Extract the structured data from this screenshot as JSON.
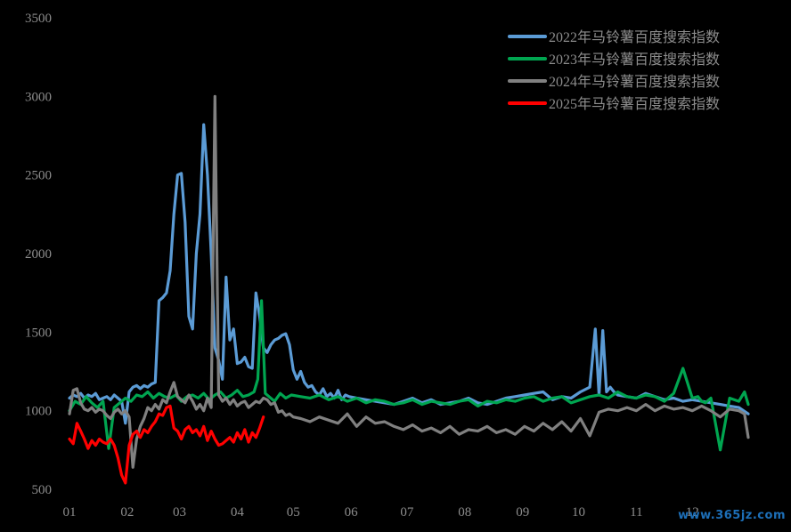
{
  "watermark": "www.365jz.com",
  "chart_data": {
    "type": "line",
    "title": "",
    "xlabel": "",
    "ylabel": "",
    "ylim": [
      500,
      3500
    ],
    "yticks": [
      500,
      1000,
      1500,
      2000,
      2500,
      3000,
      3500
    ],
    "x_unit": "day-of-year",
    "xlim": [
      1,
      365
    ],
    "xticks": [
      {
        "label": "01",
        "day": 1
      },
      {
        "label": "02",
        "day": 32
      },
      {
        "label": "03",
        "day": 60
      },
      {
        "label": "04",
        "day": 91
      },
      {
        "label": "05",
        "day": 121
      },
      {
        "label": "06",
        "day": 152
      },
      {
        "label": "07",
        "day": 182
      },
      {
        "label": "08",
        "day": 213
      },
      {
        "label": "09",
        "day": 244
      },
      {
        "label": "10",
        "day": 274
      },
      {
        "label": "11",
        "day": 305
      },
      {
        "label": "12",
        "day": 335
      }
    ],
    "grid": false,
    "legend_position": "top-right",
    "series": [
      {
        "name": "2022年马铃薯百度搜索指数",
        "color": "#5b9bd5",
        "x": [
          1,
          3,
          5,
          7,
          9,
          11,
          13,
          15,
          17,
          19,
          21,
          23,
          25,
          27,
          29,
          31,
          33,
          35,
          37,
          39,
          41,
          43,
          45,
          47,
          49,
          51,
          53,
          55,
          57,
          59,
          61,
          63,
          65,
          67,
          69,
          71,
          73,
          75,
          77,
          79,
          81,
          83,
          85,
          87,
          89,
          91,
          93,
          95,
          97,
          99,
          101,
          103,
          105,
          107,
          109,
          111,
          113,
          115,
          117,
          119,
          121,
          123,
          125,
          127,
          129,
          131,
          133,
          135,
          137,
          139,
          141,
          143,
          145,
          147,
          149,
          151,
          155,
          160,
          165,
          170,
          175,
          180,
          185,
          190,
          195,
          200,
          205,
          210,
          215,
          220,
          225,
          230,
          235,
          240,
          245,
          250,
          255,
          260,
          265,
          270,
          275,
          280,
          283,
          285,
          287,
          289,
          291,
          293,
          295,
          300,
          305,
          310,
          315,
          320,
          325,
          330,
          335,
          340,
          345,
          350,
          355,
          360,
          365
        ],
        "y": [
          1080,
          1100,
          1090,
          1110,
          1080,
          1100,
          1090,
          1110,
          1070,
          1080,
          1090,
          1070,
          1100,
          1080,
          1060,
          920,
          1120,
          1150,
          1160,
          1140,
          1160,
          1150,
          1170,
          1180,
          1700,
          1720,
          1750,
          1890,
          2250,
          2500,
          2510,
          2200,
          1600,
          1520,
          2000,
          2250,
          2820,
          2500,
          2000,
          1400,
          1320,
          1200,
          1850,
          1450,
          1520,
          1300,
          1310,
          1340,
          1280,
          1270,
          1750,
          1600,
          1400,
          1370,
          1420,
          1450,
          1460,
          1480,
          1490,
          1420,
          1260,
          1200,
          1250,
          1180,
          1150,
          1160,
          1120,
          1100,
          1140,
          1090,
          1110,
          1080,
          1130,
          1070,
          1100,
          1090,
          1080,
          1070,
          1060,
          1050,
          1040,
          1060,
          1080,
          1050,
          1070,
          1040,
          1050,
          1060,
          1080,
          1050,
          1040,
          1060,
          1080,
          1090,
          1100,
          1110,
          1120,
          1070,
          1090,
          1080,
          1120,
          1150,
          1520,
          1100,
          1510,
          1120,
          1150,
          1120,
          1100,
          1090,
          1080,
          1110,
          1090,
          1070,
          1080,
          1060,
          1070,
          1060,
          1050,
          1040,
          1030,
          1020,
          980
        ]
      },
      {
        "name": "2023年马铃薯百度搜索指数",
        "color": "#00a550",
        "x": [
          1,
          4,
          7,
          10,
          13,
          16,
          19,
          22,
          25,
          28,
          31,
          34,
          37,
          40,
          43,
          46,
          49,
          52,
          55,
          58,
          61,
          64,
          67,
          70,
          73,
          76,
          79,
          82,
          85,
          88,
          91,
          94,
          97,
          100,
          102,
          104,
          106,
          108,
          111,
          114,
          117,
          120,
          125,
          130,
          135,
          140,
          145,
          150,
          155,
          160,
          165,
          170,
          175,
          180,
          185,
          190,
          195,
          200,
          205,
          210,
          215,
          220,
          225,
          230,
          235,
          240,
          245,
          250,
          255,
          260,
          265,
          270,
          275,
          280,
          285,
          290,
          295,
          300,
          305,
          310,
          315,
          320,
          325,
          330,
          335,
          338,
          340,
          342,
          345,
          350,
          355,
          360,
          363,
          365
        ],
        "y": [
          1000,
          1060,
          1040,
          1090,
          1050,
          1020,
          1060,
          760,
          1020,
          1050,
          1080,
          1060,
          1100,
          1090,
          1120,
          1080,
          1110,
          1090,
          1080,
          1100,
          1060,
          1090,
          1100,
          1080,
          1110,
          1070,
          1100,
          1120,
          1080,
          1100,
          1130,
          1090,
          1100,
          1120,
          1200,
          1700,
          1110,
          1090,
          1060,
          1110,
          1080,
          1100,
          1090,
          1080,
          1100,
          1070,
          1090,
          1060,
          1080,
          1050,
          1070,
          1060,
          1040,
          1050,
          1070,
          1040,
          1060,
          1050,
          1040,
          1060,
          1070,
          1030,
          1060,
          1050,
          1070,
          1060,
          1080,
          1090,
          1060,
          1080,
          1090,
          1050,
          1070,
          1090,
          1100,
          1080,
          1120,
          1090,
          1080,
          1100,
          1090,
          1060,
          1110,
          1270,
          1080,
          1090,
          1060,
          1050,
          1080,
          750,
          1080,
          1060,
          1120,
          1040
        ]
      },
      {
        "name": "2024年马铃薯百度搜索指数",
        "color": "#808080",
        "x": [
          1,
          3,
          5,
          7,
          9,
          11,
          13,
          15,
          17,
          19,
          21,
          23,
          25,
          27,
          29,
          31,
          33,
          35,
          37,
          39,
          41,
          43,
          45,
          47,
          49,
          51,
          53,
          55,
          57,
          59,
          61,
          63,
          65,
          67,
          69,
          71,
          73,
          75,
          77,
          79,
          81,
          83,
          85,
          87,
          89,
          91,
          93,
          95,
          97,
          99,
          101,
          103,
          105,
          107,
          109,
          111,
          113,
          115,
          117,
          119,
          121,
          125,
          130,
          135,
          140,
          145,
          150,
          155,
          160,
          165,
          170,
          175,
          180,
          185,
          190,
          195,
          200,
          205,
          210,
          215,
          220,
          225,
          230,
          235,
          240,
          245,
          250,
          255,
          260,
          265,
          270,
          275,
          280,
          285,
          290,
          295,
          300,
          305,
          310,
          315,
          320,
          325,
          330,
          335,
          340,
          345,
          350,
          355,
          360,
          363,
          365
        ],
        "y": [
          980,
          1130,
          1140,
          1050,
          1010,
          1000,
          1020,
          990,
          1010,
          1000,
          970,
          950,
          990,
          1010,
          980,
          1000,
          960,
          640,
          820,
          900,
          950,
          1020,
          1000,
          1040,
          1010,
          1070,
          1050,
          1120,
          1180,
          1090,
          1070,
          1050,
          1100,
          1060,
          1010,
          1040,
          1000,
          1080,
          1020,
          3000,
          1100,
          1060,
          1080,
          1040,
          1070,
          1030,
          1050,
          1060,
          1020,
          1040,
          1060,
          1050,
          1080,
          1070,
          1040,
          1050,
          990,
          1000,
          970,
          980,
          960,
          950,
          930,
          960,
          940,
          920,
          980,
          900,
          960,
          920,
          930,
          900,
          880,
          910,
          870,
          890,
          860,
          900,
          850,
          880,
          870,
          900,
          860,
          880,
          850,
          900,
          870,
          920,
          880,
          930,
          870,
          950,
          840,
          990,
          1010,
          1000,
          1020,
          1000,
          1040,
          1000,
          1030,
          1010,
          1020,
          1000,
          1030,
          1000,
          960,
          1010,
          1000,
          980,
          830
        ]
      },
      {
        "name": "2025年马铃薯百度搜索指数",
        "color": "#ff0000",
        "x": [
          1,
          3,
          5,
          7,
          9,
          11,
          13,
          15,
          17,
          19,
          21,
          23,
          25,
          27,
          29,
          31,
          33,
          35,
          37,
          39,
          41,
          43,
          45,
          47,
          49,
          51,
          53,
          55,
          57,
          59,
          61,
          63,
          65,
          67,
          69,
          71,
          73,
          75,
          77,
          79,
          81,
          83,
          85,
          87,
          89,
          91,
          93,
          95,
          97,
          99,
          101,
          103,
          105
        ],
        "y": [
          820,
          790,
          920,
          870,
          820,
          760,
          810,
          780,
          820,
          800,
          790,
          820,
          780,
          700,
          590,
          540,
          780,
          850,
          870,
          830,
          880,
          860,
          900,
          930,
          980,
          970,
          1020,
          1030,
          890,
          870,
          820,
          880,
          900,
          860,
          880,
          840,
          900,
          810,
          870,
          820,
          780,
          790,
          810,
          830,
          800,
          860,
          820,
          880,
          800,
          860,
          830,
          890,
          960
        ]
      }
    ]
  }
}
